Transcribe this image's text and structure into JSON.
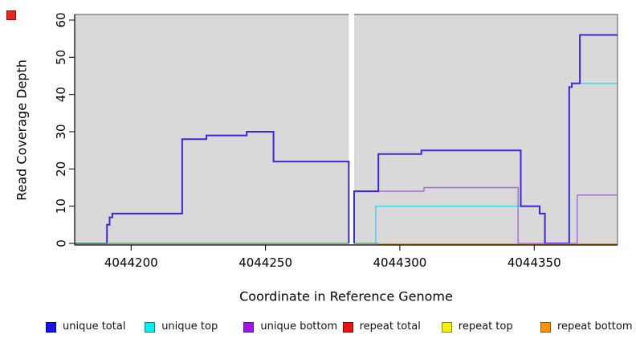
{
  "chart_data": {
    "type": "line",
    "subtype": "step",
    "title": "",
    "xlabel": "Coordinate in Reference Genome",
    "ylabel": "Read Coverage Depth",
    "xlim": [
      4044179,
      4044381
    ],
    "ylim": [
      0,
      60
    ],
    "x_ticks": [
      4044200,
      4044250,
      4044300,
      4044350
    ],
    "y_ticks": [
      0,
      10,
      20,
      30,
      40,
      50,
      60
    ],
    "plot_bg": "#d9d9d9",
    "grid": false,
    "legend_position": "bottom",
    "gap_region": {
      "from": 4044281,
      "to": 4044283,
      "color": "#ffffff"
    },
    "series": [
      {
        "name": "unique total",
        "color": "#3a28df",
        "legend_fill": "#1414e8",
        "legend_border": "#00008b",
        "width": 2,
        "segments": [
          [
            [
              4044179,
              0
            ],
            [
              4044191,
              5
            ],
            [
              4044192,
              7
            ],
            [
              4044193,
              8
            ],
            [
              4044219,
              28
            ],
            [
              4044228,
              29
            ],
            [
              4044243,
              30
            ],
            [
              4044253,
              22
            ],
            [
              4044281,
              0
            ]
          ],
          [
            [
              4044283,
              0
            ],
            [
              4044283,
              14
            ],
            [
              4044292,
              24
            ],
            [
              4044308,
              25
            ],
            [
              4044345,
              10
            ],
            [
              4044352,
              8
            ],
            [
              4044354,
              0
            ],
            [
              4044363,
              42
            ],
            [
              4044364,
              43
            ],
            [
              4044367,
              56
            ],
            [
              4044381,
              56
            ]
          ]
        ]
      },
      {
        "name": "unique top",
        "color": "#41dbe8",
        "legend_fill": "#00f0f0",
        "legend_border": "#008b8b",
        "width": 1.6,
        "segments": [
          [
            [
              4044291,
              0
            ],
            [
              4044291,
              10
            ],
            [
              4044352,
              8
            ],
            [
              4044354,
              0
            ],
            [
              4044363,
              42
            ],
            [
              4044364,
              43
            ],
            [
              4044381,
              43
            ]
          ]
        ]
      },
      {
        "name": "unique bottom",
        "color": "#aa66d9",
        "legend_fill": "#9b17e8",
        "legend_border": "#551a8b",
        "width": 1.4,
        "segments": [
          [
            [
              4044283,
              0
            ],
            [
              4044283,
              14
            ],
            [
              4044309,
              15
            ],
            [
              4044344,
              0
            ],
            [
              4044366,
              13
            ],
            [
              4044381,
              13
            ]
          ]
        ]
      },
      {
        "name": "repeat total",
        "color": "#d92121",
        "legend_fill": "#e81414",
        "legend_border": "#8b0000",
        "width": 1.2,
        "dy": 1,
        "segments": [
          [
            [
              4044292,
              0
            ],
            [
              4044381,
              0
            ]
          ]
        ]
      },
      {
        "name": "repeat top",
        "color": "#e8e833",
        "legend_fill": "#f2f200",
        "legend_border": "#8b8b00",
        "width": 1.2,
        "dy": 1,
        "segments": [
          [
            [
              4044292,
              0
            ],
            [
              4044381,
              0
            ]
          ]
        ]
      },
      {
        "name": "repeat bottom",
        "color": "#ff8c00",
        "legend_fill": "#ff9300",
        "legend_border": "#8b5a00",
        "width": 1.8,
        "dy": 1,
        "segments": [
          [
            [
              4044292,
              0
            ],
            [
              4044381,
              0
            ]
          ]
        ]
      }
    ],
    "draw_order": [
      "repeat total",
      "repeat top",
      "unique top",
      "unique bottom",
      "unique total",
      "repeat bottom"
    ],
    "overlays": [
      {
        "name": "zero-baseline-overlap",
        "note": "zero-coverage baseline left of gap renders green (overlapping top-strand lines)",
        "color": "#55b169",
        "width": 1.5,
        "segments": [
          [
            [
              4044179,
              0
            ],
            [
              4044281,
              0
            ]
          ],
          [
            [
              4044283,
              0
            ],
            [
              4044292,
              0
            ]
          ]
        ]
      }
    ]
  },
  "corner_marker": {
    "fill": "#e8261d",
    "border": "#8b1105"
  }
}
